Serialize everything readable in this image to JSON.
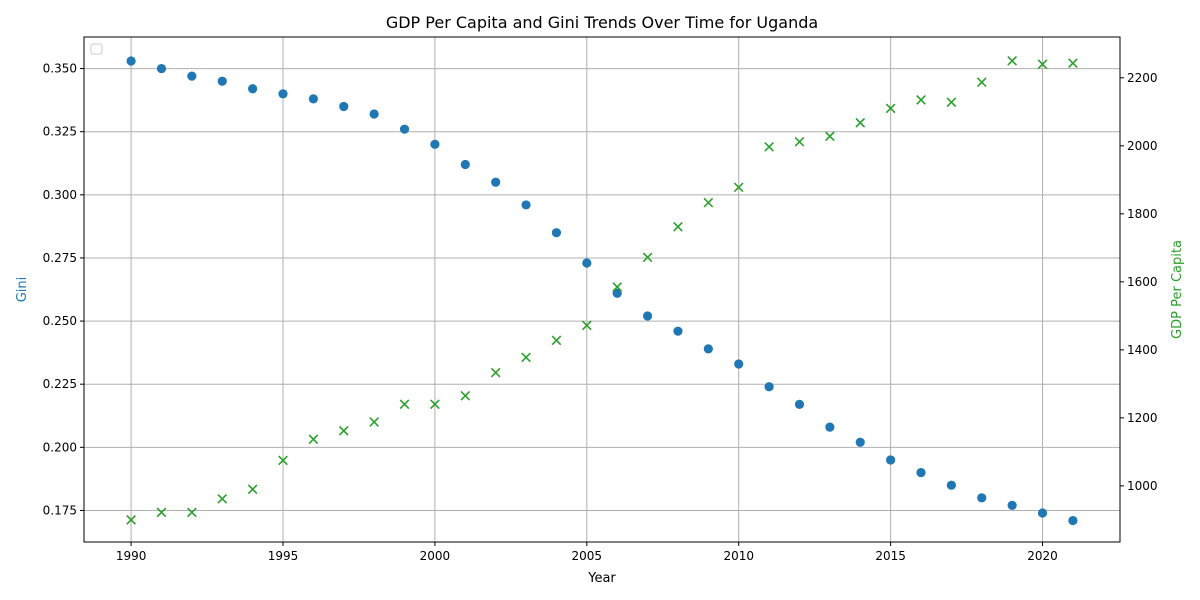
{
  "chart_data": {
    "type": "scatter",
    "title": "GDP Per Capita and Gini Trends Over Time for Uganda",
    "xlabel": "Year",
    "ylabel_left": "Gini",
    "ylabel_right": "GDP Per Capita",
    "xlim": [
      1988.45,
      2022.55
    ],
    "ylim_left": [
      0.1625,
      0.3625
    ],
    "ylim_right": [
      835,
      2320
    ],
    "x_ticks": [
      1990,
      1995,
      2000,
      2005,
      2010,
      2015,
      2020
    ],
    "y_left_ticks": [
      "0.175",
      "0.200",
      "0.225",
      "0.250",
      "0.275",
      "0.300",
      "0.325",
      "0.350"
    ],
    "y_right_ticks": [
      1000,
      1200,
      1400,
      1600,
      1800,
      2000,
      2200
    ],
    "grid": true,
    "legend": "top-left (empty)",
    "x": [
      1990,
      1991,
      1992,
      1993,
      1994,
      1995,
      1996,
      1997,
      1998,
      1999,
      2000,
      2001,
      2002,
      2003,
      2004,
      2005,
      2006,
      2007,
      2008,
      2009,
      2010,
      2011,
      2012,
      2013,
      2014,
      2015,
      2016,
      2017,
      2018,
      2019,
      2020,
      2021
    ],
    "series": [
      {
        "axis": "left",
        "marker": "circle",
        "color": "#1f77b4",
        "values": [
          0.353,
          0.35,
          0.347,
          0.345,
          0.342,
          0.34,
          0.338,
          0.335,
          0.332,
          0.326,
          0.32,
          0.312,
          0.305,
          0.296,
          0.285,
          0.273,
          0.261,
          0.252,
          0.246,
          0.239,
          0.233,
          0.224,
          0.217,
          0.208,
          0.202,
          0.195,
          0.19,
          0.185,
          0.18,
          0.177,
          0.174,
          0.171
        ]
      },
      {
        "axis": "right",
        "marker": "x",
        "color": "#2ca02c",
        "values": [
          900,
          922,
          922,
          962,
          990,
          1075,
          1137,
          1162,
          1188,
          1240,
          1240,
          1265,
          1333,
          1378,
          1428,
          1472,
          1585,
          1672,
          1762,
          1833,
          1878,
          1997,
          2012,
          2028,
          2068,
          2110,
          2135,
          2128,
          2187,
          2250,
          2240,
          2243
        ]
      }
    ]
  }
}
